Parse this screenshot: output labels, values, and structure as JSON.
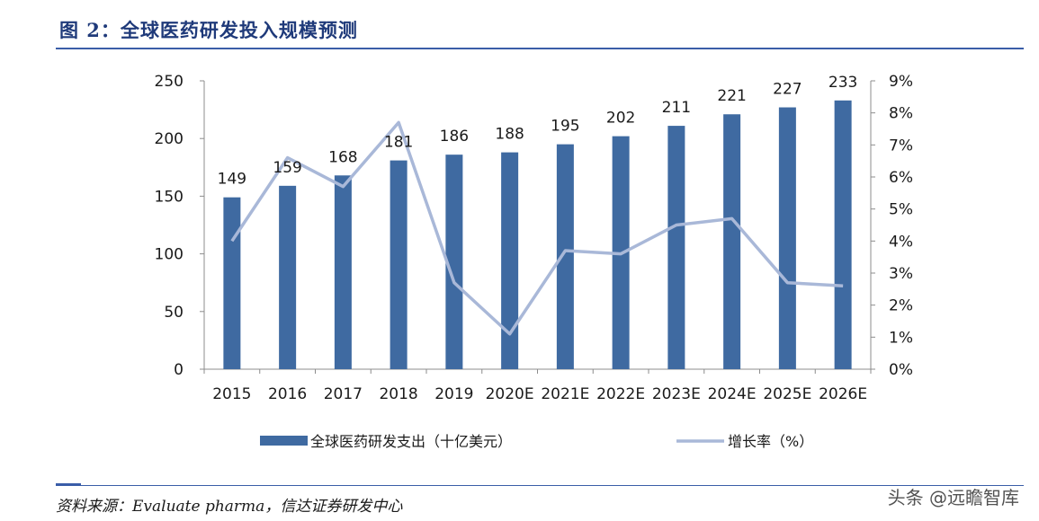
{
  "header": {
    "title": "图 2：全球医药研发投入规模预测"
  },
  "footer": {
    "source": "资料来源：Evaluate pharma，信达证券研发中心",
    "watermark": "头条 @远瞻智库"
  },
  "colors": {
    "bar": "#3f6aa1",
    "line": "#a9b8d8",
    "axis": "#8c8c8c"
  },
  "chart_data": {
    "type": "bar",
    "title": "全球医药研发投入规模预测",
    "categories": [
      "2015",
      "2016",
      "2017",
      "2018",
      "2019",
      "2020E",
      "2021E",
      "2022E",
      "2023E",
      "2024E",
      "2025E",
      "2026E"
    ],
    "series": [
      {
        "name": "全球医药研发支出（十亿美元）",
        "type": "bar",
        "axis": "left",
        "values": [
          149,
          159,
          168,
          181,
          186,
          188,
          195,
          202,
          211,
          221,
          227,
          233
        ]
      },
      {
        "name": "增长率（%）",
        "type": "line",
        "axis": "right",
        "values": [
          4.0,
          6.6,
          5.7,
          7.7,
          2.7,
          1.1,
          3.7,
          3.6,
          4.5,
          4.7,
          2.7,
          2.6
        ]
      }
    ],
    "ylim_left": [
      0,
      250
    ],
    "yticks_left": [
      "0",
      "50",
      "100",
      "150",
      "200",
      "250"
    ],
    "ylim_right": [
      0,
      9
    ],
    "yticks_right": [
      "0%",
      "1%",
      "2%",
      "3%",
      "4%",
      "5%",
      "6%",
      "7%",
      "8%",
      "9%"
    ],
    "legend_position": "bottom"
  }
}
